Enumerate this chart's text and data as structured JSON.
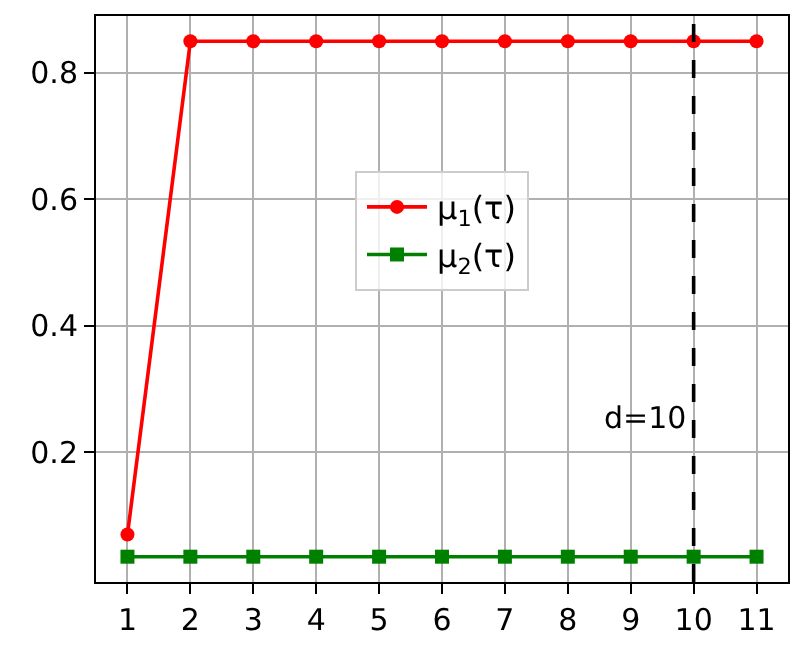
{
  "chart_data": {
    "type": "line",
    "x": [
      1,
      2,
      3,
      4,
      5,
      6,
      7,
      8,
      9,
      10,
      11
    ],
    "series": [
      {
        "name": "μ$_{1}$(τ)",
        "color": "#ff0000",
        "marker": "circle",
        "values": [
          0.07,
          0.85,
          0.85,
          0.85,
          0.85,
          0.85,
          0.85,
          0.85,
          0.85,
          0.85,
          0.85
        ]
      },
      {
        "name": "μ$_{2}$(τ)",
        "color": "#008000",
        "marker": "square",
        "values": [
          0.035,
          0.035,
          0.035,
          0.035,
          0.035,
          0.035,
          0.035,
          0.035,
          0.035,
          0.035,
          0.035
        ]
      }
    ],
    "xlim": [
      0.5,
      11.5
    ],
    "xticks": [
      1,
      2,
      3,
      4,
      5,
      6,
      7,
      8,
      9,
      10,
      11
    ],
    "ylim": [
      -0.005,
      0.89
    ],
    "yticks": [
      0.2,
      0.4,
      0.6,
      0.8
    ],
    "ref_lines": [
      {
        "axis": "x",
        "value": 10,
        "label": "d=10",
        "color": "#000000",
        "line_style": "dashed"
      }
    ],
    "grid": true,
    "legend": "center",
    "line_style": "solid"
  }
}
